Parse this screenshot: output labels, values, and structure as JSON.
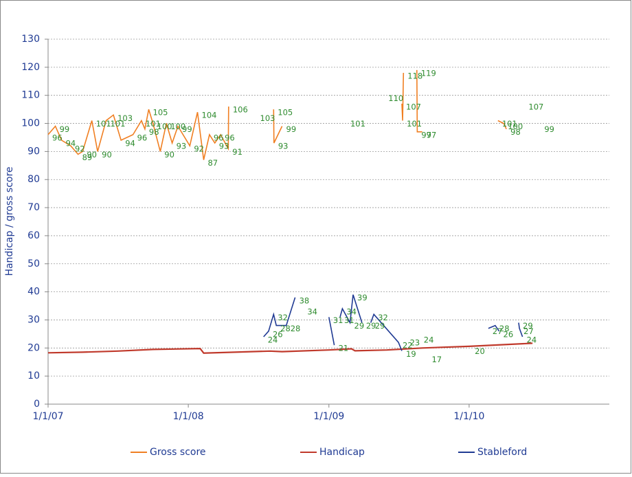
{
  "chart_data": {
    "type": "line",
    "y_label": "Handicap / gross score",
    "ylim": [
      0,
      130
    ],
    "yticks": [
      0,
      10,
      20,
      30,
      40,
      50,
      60,
      70,
      80,
      90,
      100,
      110,
      120,
      130
    ],
    "xlim": [
      "1/1/07",
      "1/1/11"
    ],
    "xticks": [
      "1/1/07",
      "1/1/08",
      "1/1/09",
      "1/1/10"
    ],
    "grid": true,
    "legend": "bottom",
    "label_color": "#2e8b2e",
    "series": [
      {
        "name": "Gross score",
        "color": "#f07f22",
        "labels": true,
        "x": [
          "1/1/07",
          "1/20/07",
          "2/5/07",
          "3/1/07",
          "3/20/07",
          "4/1/07",
          "4/25/07",
          "5/10/07",
          "6/1/07",
          "6/20/07",
          "7/10/07",
          "8/10/07",
          "9/1/07",
          "9/10/07",
          "9/20/07",
          "10/1/07",
          "10/20/07",
          "11/5/07",
          "11/20/07",
          "12/5/07",
          "1/5/08",
          "1/25/08",
          "2/10/08",
          "2/25/08",
          "3/10/08",
          "3/25/08",
          "4/14/08",
          "4/15/08",
          "5/1/08",
          "6/25/08",
          "7/15/08",
          "8/10/08",
          "8/11/08",
          "9/1/08",
          "10/1/08",
          "2/15/09",
          "4/1/09",
          "5/25/09",
          "6/20/09",
          "7/10/09",
          "7/12/09",
          "7/14/09",
          "8/1/09",
          "8/18/09",
          "8/19/09",
          "9/1/09",
          "9/5/09",
          "3/17/10",
          "4/1/10",
          "4/8/10",
          "5/1/10",
          "5/25/10",
          "6/10/10",
          "7/5/10"
        ],
        "values": [
          96,
          99,
          94,
          92,
          89,
          90,
          101,
          90,
          101,
          103,
          94,
          96,
          101,
          98,
          105,
          100,
          90,
          100,
          93,
          99,
          92,
          104,
          87,
          96,
          93,
          96,
          91,
          106,
          null,
          103,
          null,
          105,
          93,
          99,
          null,
          101,
          null,
          110,
          null,
          107,
          101,
          118,
          null,
          119,
          97,
          97,
          null,
          101,
          100,
          98,
          null,
          107,
          null,
          99
        ]
      },
      {
        "name": "Handicap",
        "color": "#c0392b",
        "labels": false,
        "x": [
          "1/1/07",
          "4/1/07",
          "7/1/07",
          "10/1/07",
          "2/1/08",
          "2/10/08",
          "5/1/08",
          "8/1/08",
          "9/1/08",
          "1/1/09",
          "3/1/09",
          "3/10/09",
          "6/1/09",
          "9/1/09",
          "1/1/10",
          "6/15/10"
        ],
        "values": [
          18.3,
          18.5,
          18.9,
          19.5,
          19.8,
          18.2,
          18.5,
          18.9,
          18.7,
          19.3,
          19.7,
          19.0,
          19.3,
          20.0,
          20.6,
          21.7
        ]
      },
      {
        "name": "Stableford",
        "color": "#1f3a93",
        "labels": true,
        "x": [
          "7/15/08",
          "7/28/08",
          "8/10/08",
          "8/17/08",
          "9/12/08",
          "10/5/08",
          "10/15/08",
          "10/26/08",
          "12/1/08",
          "1/1/09",
          "1/15/09",
          "1/20/09",
          "1/30/09",
          "2/5/09",
          "2/25/09",
          "3/5/09",
          "3/28/09",
          "4/10/09",
          "4/20/09",
          "4/28/09",
          "7/1/09",
          "7/10/09",
          "7/15/09",
          "7/20/09",
          "8/1/09",
          "8/25/09",
          "9/1/09",
          "9/15/09",
          "10/1/09",
          "1/5/10",
          "2/1/10",
          "2/20/10",
          "3/10/10",
          "3/20/10",
          "4/20/10",
          "5/10/10",
          "5/12/10",
          "5/20/10"
        ],
        "values": [
          24,
          26,
          32,
          28,
          28,
          38,
          null,
          34,
          null,
          31,
          21,
          null,
          31,
          34,
          29,
          39,
          29,
          null,
          29,
          32,
          22,
          19,
          null,
          23,
          null,
          24,
          null,
          17,
          null,
          20,
          null,
          27,
          28,
          26,
          null,
          29,
          27,
          24
        ]
      }
    ]
  }
}
